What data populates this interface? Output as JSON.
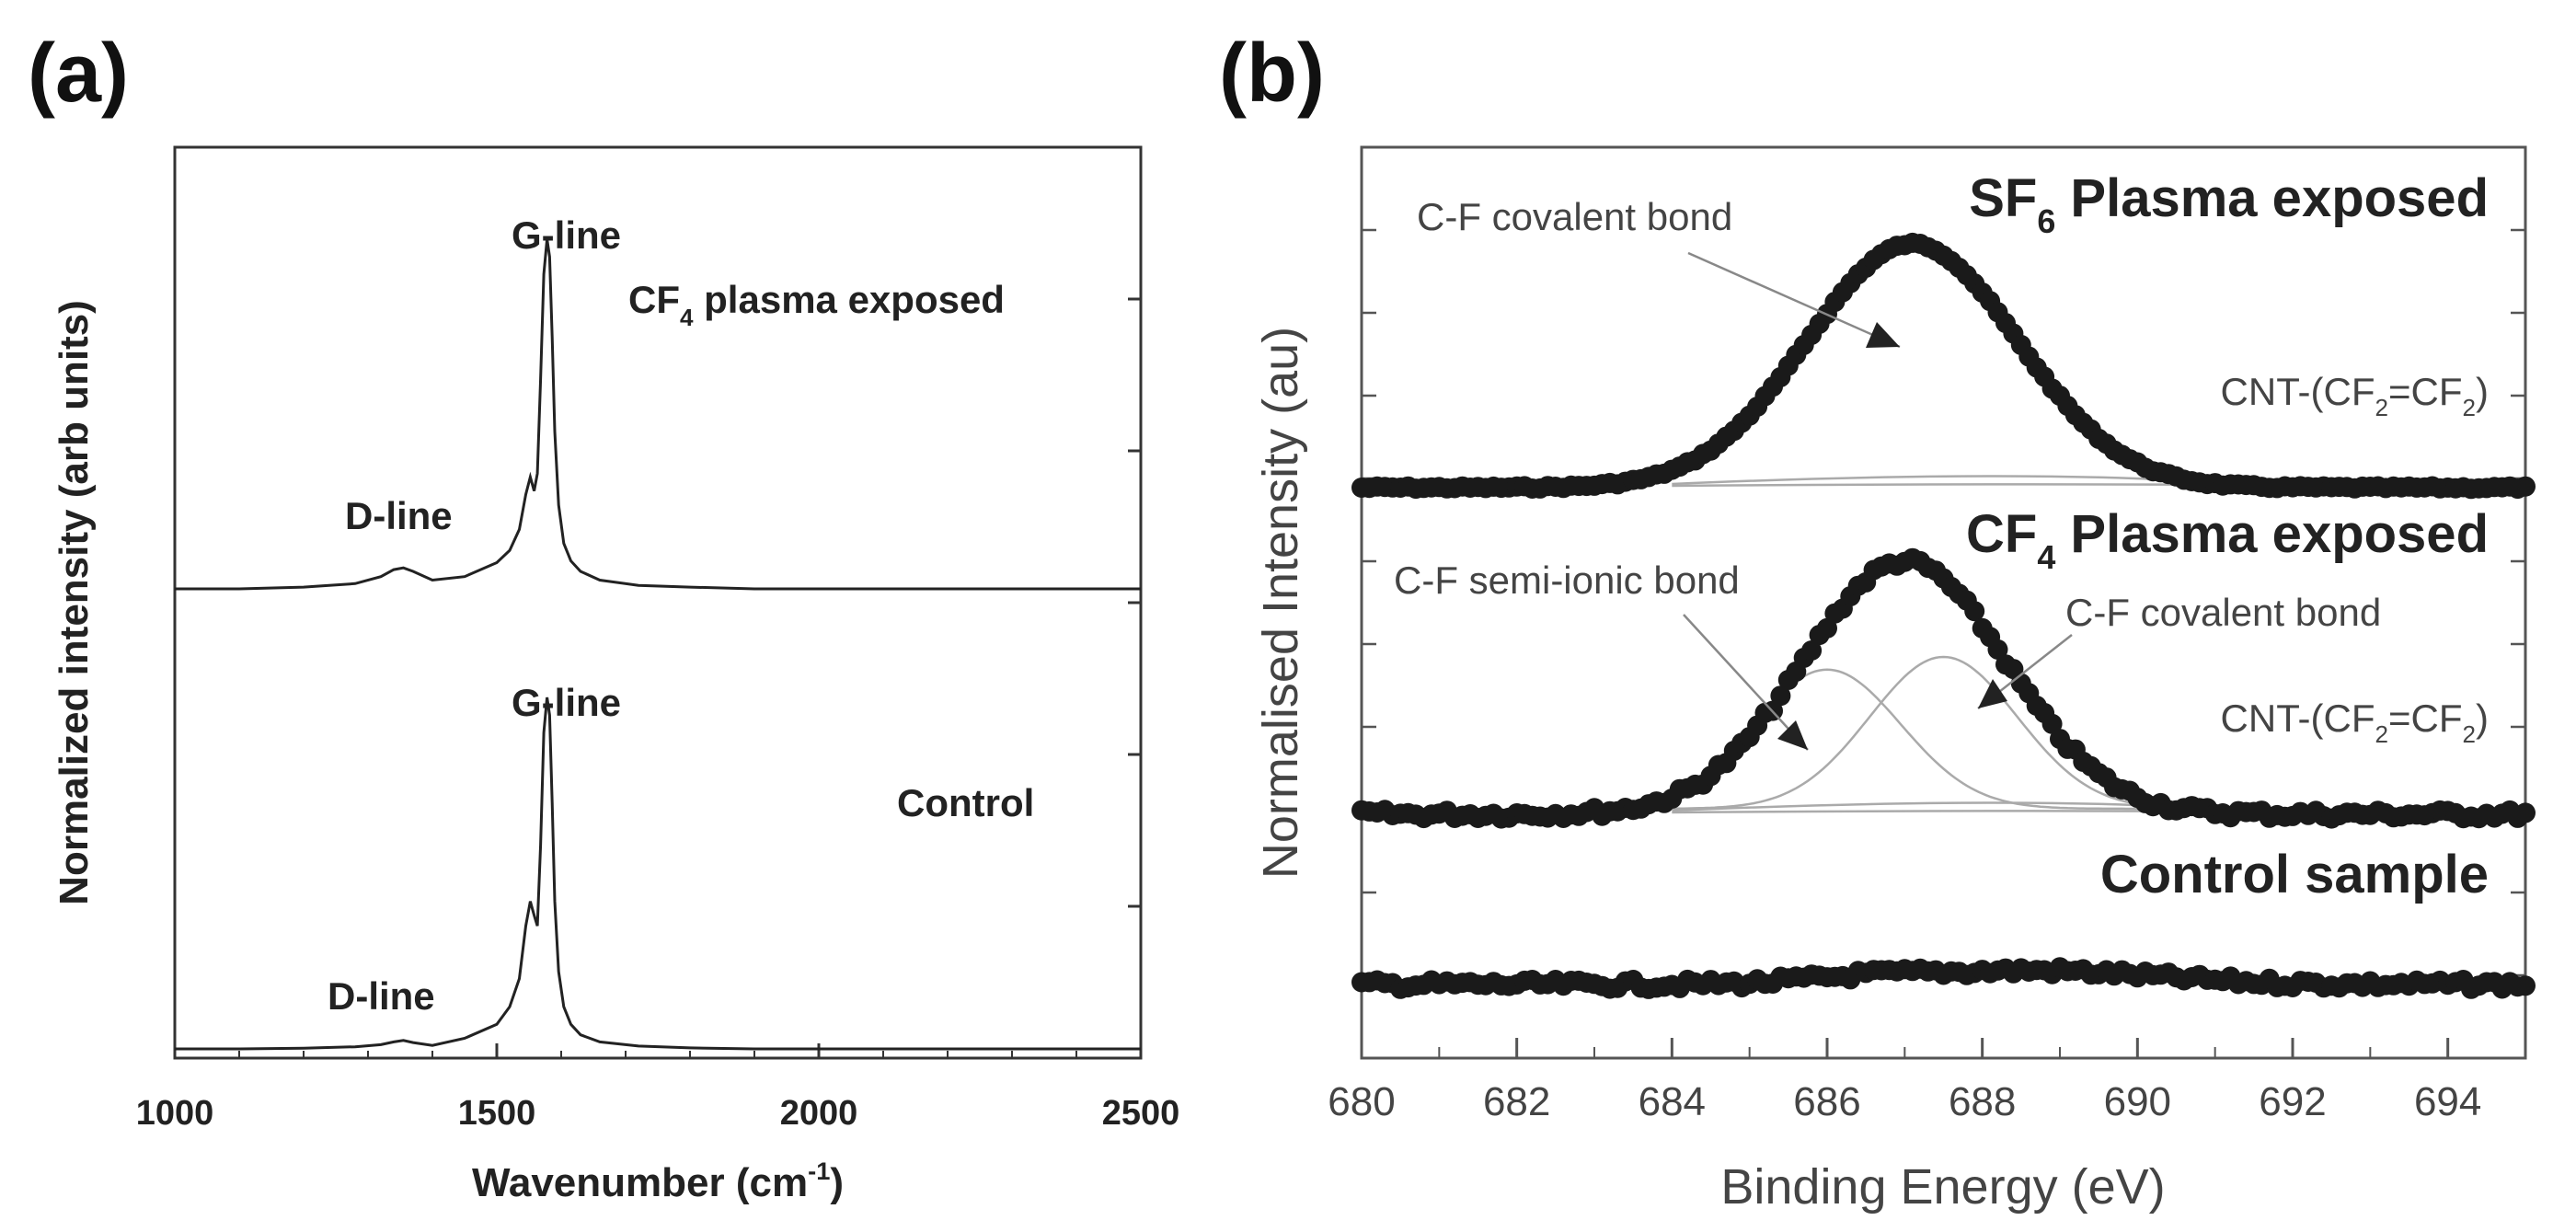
{
  "chart_data": [
    {
      "panel": "(a)",
      "type": "line",
      "xlabel": "Wavenumber (cm",
      "xlabel_sup": "-1",
      "xlabel_close": ")",
      "ylabel": "Normalized intensity (arb units)",
      "xlim": [
        1000,
        2500
      ],
      "xticks": [
        1000,
        1500,
        2000,
        2500
      ],
      "series": [
        {
          "name": "CF4 plasma exposed",
          "label_main": "CF",
          "label_sub": "4",
          "label_rest": " plasma exposed",
          "offset": 1.0,
          "x": [
            1000,
            1100,
            1200,
            1280,
            1320,
            1340,
            1355,
            1370,
            1400,
            1450,
            1500,
            1520,
            1535,
            1545,
            1552,
            1558,
            1563,
            1568,
            1573,
            1578,
            1582,
            1586,
            1590,
            1596,
            1604,
            1615,
            1630,
            1660,
            1720,
            1800,
            1900,
            2000,
            2200,
            2500
          ],
          "y": [
            0.0,
            0.0,
            0.005,
            0.015,
            0.035,
            0.055,
            0.06,
            0.05,
            0.025,
            0.035,
            0.075,
            0.11,
            0.17,
            0.27,
            0.32,
            0.28,
            0.33,
            0.6,
            0.9,
            1.0,
            0.95,
            0.72,
            0.45,
            0.24,
            0.13,
            0.08,
            0.05,
            0.025,
            0.01,
            0.005,
            0.0,
            0.0,
            0.0,
            0.0
          ],
          "annotations": [
            {
              "text": "G-line",
              "x": 1582
            },
            {
              "text": "D-line",
              "x": 1350
            }
          ]
        },
        {
          "name": "Control",
          "label_main": "Control",
          "label_sub": "",
          "label_rest": "",
          "offset": 0.0,
          "x": [
            1000,
            1100,
            1200,
            1280,
            1320,
            1340,
            1355,
            1370,
            1400,
            1450,
            1500,
            1520,
            1535,
            1545,
            1552,
            1558,
            1563,
            1568,
            1573,
            1578,
            1582,
            1586,
            1590,
            1596,
            1604,
            1615,
            1630,
            1660,
            1720,
            1800,
            1900,
            2000,
            2200,
            2500
          ],
          "y": [
            0.0,
            0.0,
            0.002,
            0.006,
            0.012,
            0.02,
            0.024,
            0.018,
            0.01,
            0.03,
            0.07,
            0.12,
            0.2,
            0.35,
            0.42,
            0.38,
            0.35,
            0.58,
            0.9,
            1.0,
            0.95,
            0.7,
            0.42,
            0.22,
            0.12,
            0.07,
            0.04,
            0.02,
            0.008,
            0.003,
            0.0,
            0.0,
            0.0,
            0.0
          ],
          "annotations": [
            {
              "text": "G-line",
              "x": 1582
            },
            {
              "text": "D-line",
              "x": 1350
            }
          ]
        }
      ]
    },
    {
      "panel": "(b)",
      "type": "scatter",
      "xlabel": "Binding Energy (eV)",
      "ylabel": "Normalised Intensity (au)",
      "xlim": [
        680,
        695
      ],
      "xticks": [
        680,
        682,
        684,
        686,
        688,
        690,
        692,
        694
      ],
      "series": [
        {
          "name": "SF6 Plasma exposed",
          "title_main": "SF",
          "title_sub": "6",
          "title_rest": " Plasma exposed",
          "peak_center": 687.1,
          "peak_height": 1.0,
          "peak_width": 1.35,
          "baseline_start": 0.0,
          "baseline_end": 0.0,
          "components": [],
          "labels": [
            "C-F covalent bond"
          ],
          "cnt_label": {
            "main": "CNT-(CF",
            "sub1": "2",
            "mid": "=CF",
            "sub2": "2",
            "end": ")"
          }
        },
        {
          "name": "CF4 Plasma exposed",
          "title_main": "CF",
          "title_sub": "4",
          "title_rest": " Plasma exposed",
          "peak_center": 687.0,
          "peak_height": 1.0,
          "peak_width": 1.3,
          "baseline_start": 0.0,
          "baseline_end": 0.0,
          "components": [
            {
              "name": "C-F semi-ionic bond",
              "center": 686.0,
              "height": 0.55,
              "width": 0.95
            },
            {
              "name": "C-F covalent bond",
              "center": 687.5,
              "height": 0.6,
              "width": 0.95
            }
          ],
          "labels": [
            "C-F semi-ionic bond",
            "C-F covalent bond"
          ],
          "cnt_label": {
            "main": "CNT-(CF",
            "sub1": "2",
            "mid": "=CF",
            "sub2": "2",
            "end": ")"
          }
        },
        {
          "name": "Control sample",
          "title_main": "Control sample",
          "title_sub": "",
          "title_rest": "",
          "peak_center": 688.7,
          "peak_height": 0.25,
          "peak_width": 1.5,
          "baseline_start": 0.0,
          "baseline_end": 0.0,
          "components": [],
          "labels": [],
          "cnt_label": null
        }
      ]
    }
  ]
}
